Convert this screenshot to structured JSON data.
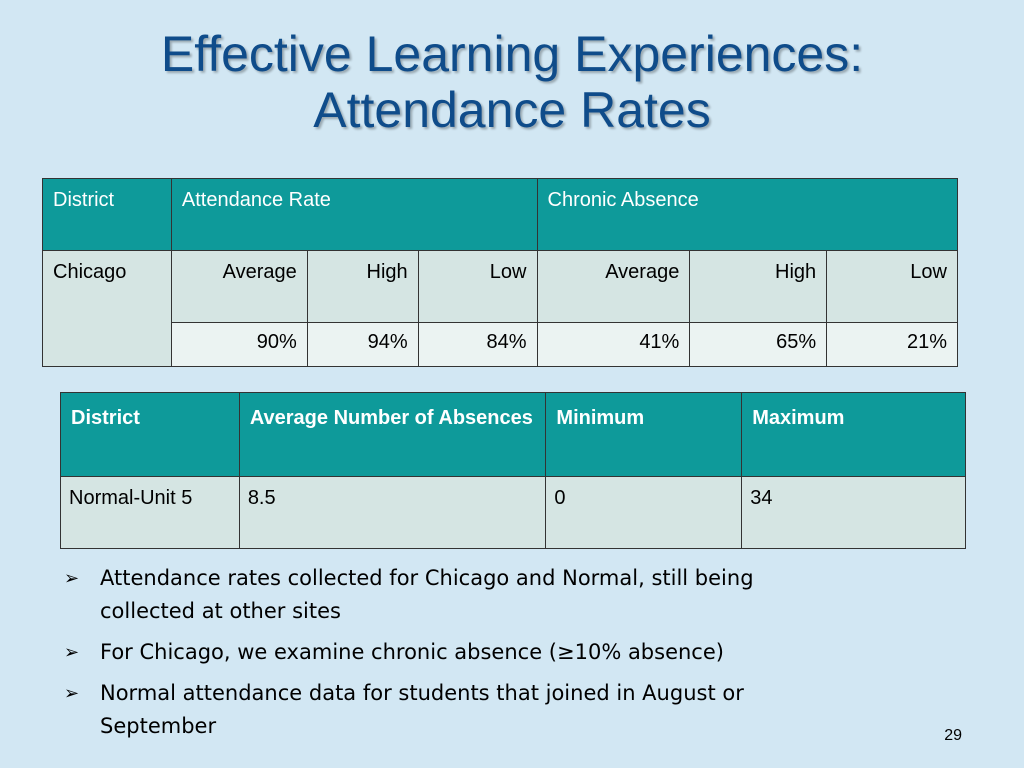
{
  "title": {
    "line1": "Effective Learning Experiences:",
    "line2": "Attendance Rates"
  },
  "table_attendance": {
    "headers": {
      "district": "District",
      "attendance_rate": "Attendance Rate",
      "chronic_absence": "Chronic Absence"
    },
    "district": "Chicago",
    "subheaders": [
      "Average",
      "High",
      "Low",
      "Average",
      "High",
      "Low"
    ],
    "values": [
      "90%",
      "94%",
      "84%",
      "41%",
      "65%",
      "21%"
    ]
  },
  "table_absences": {
    "headers": [
      "District",
      "Average Number of Absences",
      "Minimum",
      "Maximum"
    ],
    "row": [
      "Normal-Unit 5",
      "8.5",
      "0",
      "34"
    ]
  },
  "bullets": [
    "Attendance rates collected for Chicago and Normal, still being collected at other sites",
    "For Chicago, we examine chronic absence (≥10% absence)",
    "Normal attendance data for students that joined in August or September"
  ],
  "page_number": "29",
  "colors": {
    "background": "#d2e7f3",
    "title": "#0f4c8a",
    "header_fill": "#0e9a9a",
    "cell_fill": "#d5e5e3",
    "cell_fill_light": "#ebf3f2"
  }
}
